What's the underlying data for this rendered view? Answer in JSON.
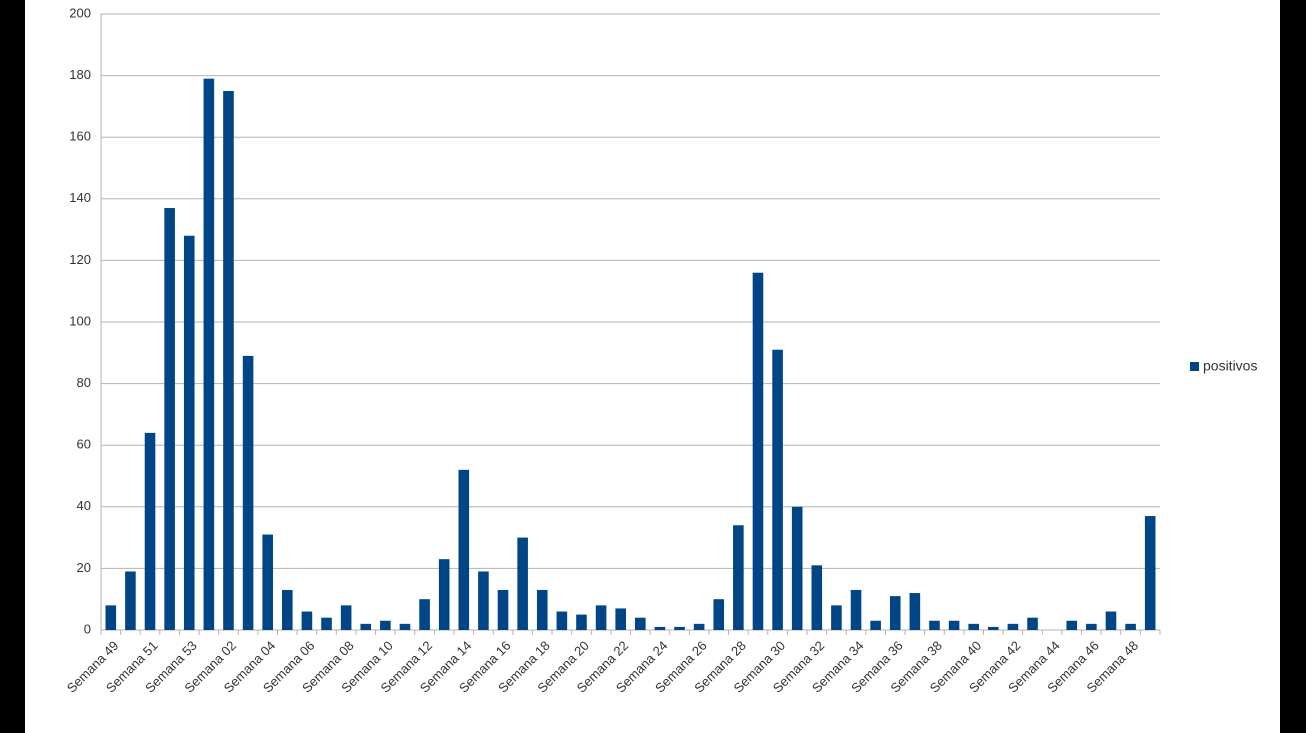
{
  "chart_data": {
    "type": "bar",
    "categories": [
      "Semana 49",
      null,
      "Semana 51",
      null,
      "Semana 53",
      null,
      "Semana 02",
      null,
      "Semana 04",
      null,
      "Semana 06",
      null,
      "Semana 08",
      null,
      "Semana 10",
      null,
      "Semana 12",
      null,
      "Semana 14",
      null,
      "Semana 16",
      null,
      "Semana 18",
      null,
      "Semana 20",
      null,
      "Semana 22",
      null,
      "Semana 24",
      null,
      "Semana 26",
      null,
      "Semana 28",
      null,
      "Semana 30",
      null,
      "Semana 32",
      null,
      "Semana 34",
      null,
      "Semana 36",
      null,
      "Semana 38",
      null,
      "Semana 40",
      null,
      "Semana 42",
      null,
      "Semana 44",
      null,
      "Semana 46",
      null,
      "Semana 48",
      null
    ],
    "series": [
      {
        "name": "positivos",
        "color": "#004586",
        "values": [
          8,
          19,
          64,
          137,
          128,
          179,
          175,
          89,
          31,
          13,
          6,
          4,
          8,
          2,
          3,
          2,
          10,
          23,
          52,
          19,
          13,
          30,
          13,
          6,
          5,
          8,
          7,
          4,
          1,
          1,
          2,
          10,
          34,
          116,
          91,
          40,
          21,
          8,
          13,
          3,
          11,
          12,
          3,
          3,
          2,
          1,
          2,
          4,
          0,
          3,
          2,
          6,
          2,
          37
        ]
      }
    ],
    "ylim": [
      0,
      200
    ],
    "yticks": [
      0,
      20,
      40,
      60,
      80,
      100,
      120,
      140,
      160,
      180,
      200
    ],
    "grid": true,
    "legend": "right"
  }
}
